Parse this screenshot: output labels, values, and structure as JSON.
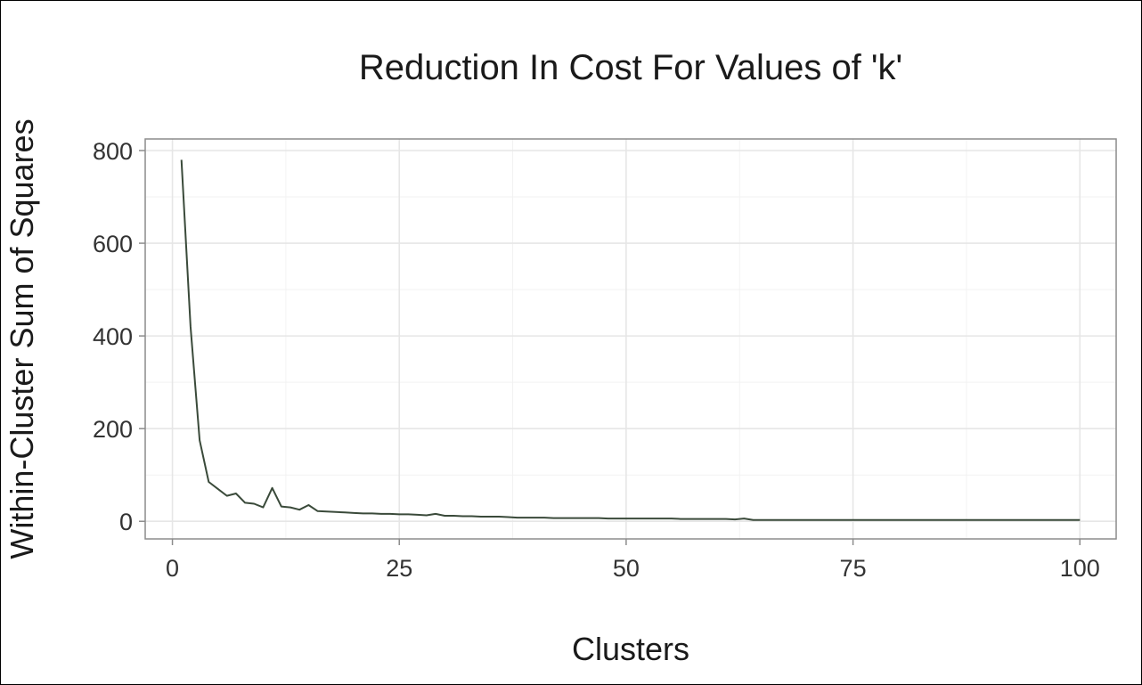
{
  "chart_data": {
    "type": "line",
    "title": "Reduction In Cost For Values of 'k'",
    "xlabel": "Clusters",
    "ylabel": "Within-Cluster Sum of Squares",
    "xlim": [
      -3,
      104
    ],
    "ylim": [
      -38,
      825
    ],
    "x_ticks": [
      0,
      25,
      50,
      75,
      100
    ],
    "y_ticks": [
      0,
      200,
      400,
      600,
      800
    ],
    "x_tick_labels": [
      "0",
      "25",
      "50",
      "75",
      "100"
    ],
    "y_tick_labels": [
      "0",
      "200",
      "400",
      "600",
      "800"
    ],
    "grid": true,
    "legend": "none",
    "colors": {
      "line": "#3a4a3a",
      "grid_major": "#e6e6e6",
      "grid_minor": "#f2f2f2",
      "panel_border": "#8c8c8c",
      "background": "#ffffff"
    },
    "series": [
      {
        "x": [
          1,
          2,
          3,
          4,
          5,
          6,
          7,
          8,
          9,
          10,
          11,
          12,
          13,
          14,
          15,
          16,
          17,
          18,
          19,
          20,
          21,
          22,
          23,
          24,
          25,
          26,
          27,
          28,
          29,
          30,
          31,
          32,
          33,
          34,
          35,
          36,
          37,
          38,
          39,
          40,
          41,
          42,
          43,
          44,
          45,
          46,
          47,
          48,
          49,
          50,
          51,
          52,
          53,
          54,
          55,
          56,
          57,
          58,
          59,
          60,
          61,
          62,
          63,
          64,
          65,
          66,
          67,
          68,
          69,
          70,
          71,
          72,
          73,
          74,
          75,
          76,
          77,
          78,
          79,
          80,
          81,
          82,
          83,
          84,
          85,
          86,
          87,
          88,
          89,
          90,
          91,
          92,
          93,
          94,
          95,
          96,
          97,
          98,
          99,
          100
        ],
        "y": [
          780,
          420,
          175,
          85,
          70,
          55,
          60,
          40,
          38,
          30,
          72,
          32,
          30,
          25,
          35,
          22,
          21,
          20,
          19,
          18,
          17,
          17,
          16,
          16,
          15,
          15,
          14,
          13,
          16,
          12,
          12,
          11,
          11,
          10,
          10,
          10,
          9,
          8,
          8,
          8,
          8,
          7,
          7,
          7,
          7,
          7,
          7,
          6,
          6,
          6,
          6,
          6,
          6,
          6,
          6,
          5,
          5,
          5,
          5,
          5,
          5,
          4,
          6,
          3,
          3,
          3,
          3,
          3,
          3,
          3,
          3,
          3,
          3,
          3,
          3,
          3,
          3,
          3,
          3,
          3,
          3,
          3,
          3,
          3,
          3,
          3,
          3,
          3,
          3,
          3,
          3,
          3,
          3,
          3,
          3,
          3,
          3,
          3,
          3,
          3
        ]
      }
    ]
  }
}
